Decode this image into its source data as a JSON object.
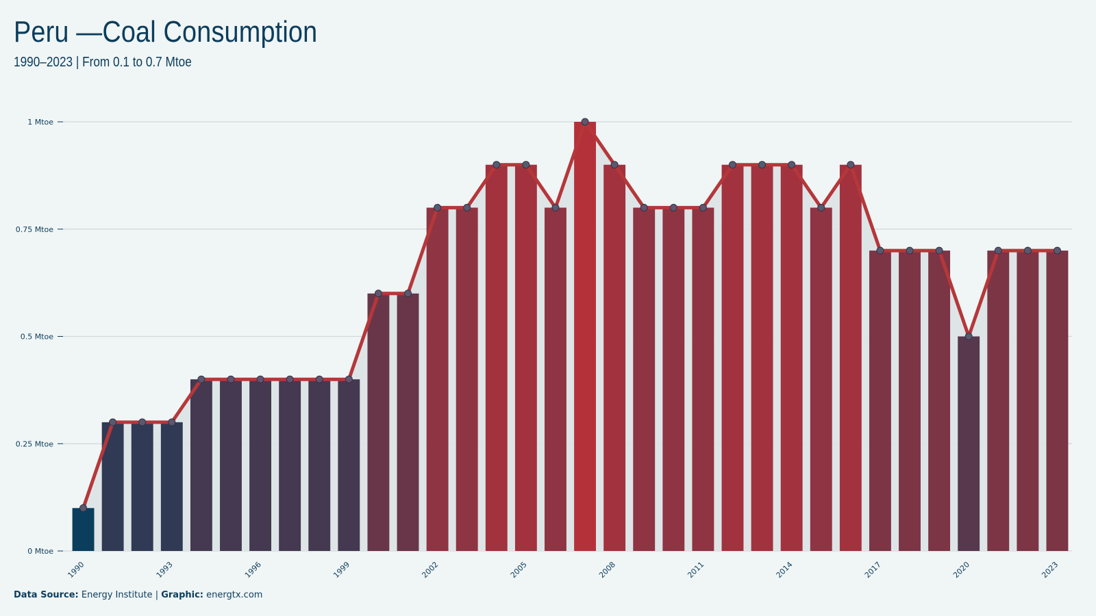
{
  "title": "Peru —Coal Consumption",
  "subtitle": "1990–2023 | From 0.1 to 0.7 Mtoe",
  "footer": {
    "source_label": "Data Source:",
    "source_value": "Energy Institute",
    "separator": "|",
    "graphic_label": "Graphic:",
    "graphic_value": "energtx.com"
  },
  "colors": {
    "background": "#f0f5f5",
    "text": "#0b3d5c",
    "line": "#b5373a",
    "low_bar": "#0b3d5c",
    "high_bar": "#b5313a",
    "grid": "#cfd9dc",
    "area": "#dbe3e6",
    "marker": "#5b5870"
  },
  "chart_data": {
    "type": "bar",
    "title": "Peru —Coal Consumption",
    "subtitle": "1990–2023 | From 0.1 to 0.7 Mtoe",
    "xlabel": "",
    "ylabel": "",
    "unit": "Mtoe",
    "categories": [
      1990,
      1991,
      1992,
      1993,
      1994,
      1995,
      1996,
      1997,
      1998,
      1999,
      2000,
      2001,
      2002,
      2003,
      2004,
      2005,
      2006,
      2007,
      2008,
      2009,
      2010,
      2011,
      2012,
      2013,
      2014,
      2015,
      2016,
      2017,
      2018,
      2019,
      2020,
      2021,
      2022,
      2023
    ],
    "values": [
      0.1,
      0.3,
      0.3,
      0.3,
      0.4,
      0.4,
      0.4,
      0.4,
      0.4,
      0.4,
      0.6,
      0.6,
      0.8,
      0.8,
      0.9,
      0.9,
      0.8,
      1.0,
      0.9,
      0.8,
      0.8,
      0.8,
      0.9,
      0.9,
      0.9,
      0.8,
      0.9,
      0.7,
      0.7,
      0.7,
      0.5,
      0.7,
      0.7,
      0.7
    ],
    "overlay": "line with markers over bars, shaded area beneath line",
    "ylim": [
      0,
      1
    ],
    "yticks": [
      0,
      0.25,
      0.5,
      0.75,
      1
    ],
    "ytick_labels": [
      "0 Mtoe",
      "0.25 Mtoe",
      "0.5 Mtoe",
      "0.75 Mtoe",
      "1 Mtoe"
    ],
    "xtick_labels": [
      "1990",
      "1993",
      "1996",
      "1999",
      "2002",
      "2005",
      "2008",
      "2011",
      "2014",
      "2017",
      "2020",
      "2023"
    ],
    "grid": "horizontal",
    "legend": "none"
  }
}
